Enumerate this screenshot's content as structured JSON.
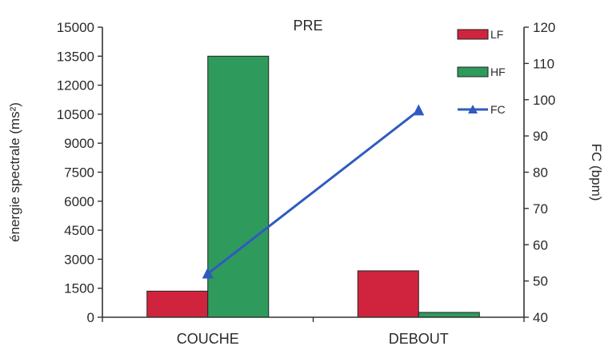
{
  "chart_data": {
    "type": "bar",
    "title": "PRE",
    "categories": [
      "COUCHE",
      "DEBOUT"
    ],
    "series": [
      {
        "name": "LF",
        "type": "bar",
        "axis": "left",
        "color": "#d0243e",
        "values": [
          1350,
          2400
        ]
      },
      {
        "name": "HF",
        "type": "bar",
        "axis": "left",
        "color": "#2e9a5c",
        "values": [
          13500,
          250
        ]
      },
      {
        "name": "FC",
        "type": "line",
        "axis": "right",
        "color": "#2f5bbf",
        "marker": "triangle",
        "values": [
          52,
          97
        ]
      }
    ],
    "ylabel": "énergie spectrale (ms²)",
    "ylim": [
      0,
      15000
    ],
    "yticks": [
      "0",
      "1500",
      "3000",
      "4500",
      "6000",
      "7500",
      "9000",
      "10500",
      "12000",
      "13500",
      "15000"
    ],
    "y2label": "FC (bpm)",
    "y2lim": [
      40,
      120
    ],
    "y2ticks": [
      "40",
      "50",
      "60",
      "70",
      "80",
      "90",
      "100",
      "110",
      "120"
    ],
    "grid": false,
    "legend_position": "top-right"
  }
}
